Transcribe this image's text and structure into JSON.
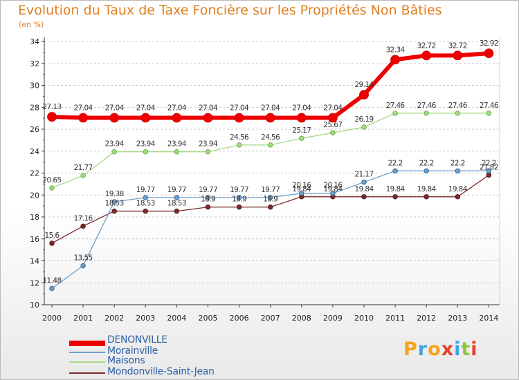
{
  "header": {
    "title": "Evolution du Taux de Taxe Foncière sur les Propriétés Non Bâties",
    "unit": "(en %)"
  },
  "logo": {
    "text": "Proxiti",
    "letters": [
      "P",
      "r",
      "o",
      "x",
      "i",
      "t",
      "i"
    ],
    "colors": [
      "#f7a21c",
      "#3da4e0",
      "#f7a21c",
      "#e73f2a",
      "#3da4e0",
      "#8cc63e",
      "#e73f2a"
    ]
  },
  "chart_data": {
    "type": "line",
    "title": "Evolution du Taux de Taxe Foncière sur les Propriétés Non Bâties",
    "ylabel": "(en %)",
    "xlabel": "",
    "categories": [
      "2000",
      "2001",
      "2002",
      "2003",
      "2004",
      "2005",
      "2006",
      "2007",
      "2008",
      "2009",
      "2010",
      "2011",
      "2012",
      "2013",
      "2014"
    ],
    "yticks": [
      10,
      12,
      14,
      16,
      18,
      20,
      22,
      24,
      26,
      28,
      30,
      32,
      34
    ],
    "ylim": [
      10,
      34
    ],
    "grid": "horizontal dashed",
    "legend_position": "bottom-left",
    "series": [
      {
        "name": "DENONVILLE",
        "color": "#ee0000",
        "values": [
          27.13,
          27.04,
          27.04,
          27.04,
          27.04,
          27.04,
          27.04,
          27.04,
          27.04,
          27.04,
          29.14,
          32.34,
          32.72,
          32.72,
          32.92
        ],
        "labels": [
          "27.13",
          "27.04",
          "27.04",
          "27.04",
          "27.04",
          "27.04",
          "27.04",
          "27.04",
          "27.04",
          "27.04",
          "29.14",
          "32.34",
          "32.72",
          "32.72",
          "32.92"
        ]
      },
      {
        "name": "Morainville",
        "color": "#6f9ec8",
        "values": [
          11.48,
          13.55,
          19.38,
          19.77,
          19.77,
          19.77,
          19.77,
          19.77,
          20.16,
          20.16,
          21.17,
          22.2,
          22.2,
          22.2,
          22.2
        ],
        "labels": [
          "11.48",
          "13.55",
          "19.38",
          "19.77",
          "19.77",
          "19.77",
          "19.77",
          "19.77",
          "20.16",
          "20.16",
          "21.17",
          "22.2",
          "22.2",
          "22.2",
          "22.2"
        ]
      },
      {
        "name": "Maisons",
        "color": "#a6d985",
        "values": [
          20.65,
          21.77,
          23.94,
          23.94,
          23.94,
          23.94,
          24.56,
          24.56,
          25.17,
          25.67,
          26.19,
          27.46,
          27.46,
          27.46,
          27.46
        ],
        "labels": [
          "20.65",
          "21.77",
          "23.94",
          "23.94",
          "23.94",
          "23.94",
          "24.56",
          "24.56",
          "25.17",
          "25.67",
          "26.19",
          "27.46",
          "27.46",
          "27.46",
          "27.46"
        ]
      },
      {
        "name": "Mondonville-Saint-Jean",
        "color": "#7b2a2a",
        "values": [
          15.6,
          17.16,
          18.53,
          18.53,
          18.53,
          18.9,
          18.9,
          18.9,
          19.84,
          19.84,
          19.84,
          19.84,
          19.84,
          19.84,
          21.82
        ],
        "labels": [
          "15.6",
          "17.16",
          "18.53",
          "18.53",
          "18.53",
          "18.9",
          "18.9",
          "18.9",
          "19.84",
          "19.84",
          "19.84",
          "19.84",
          "19.84",
          "19.84",
          "21.82"
        ]
      }
    ]
  }
}
